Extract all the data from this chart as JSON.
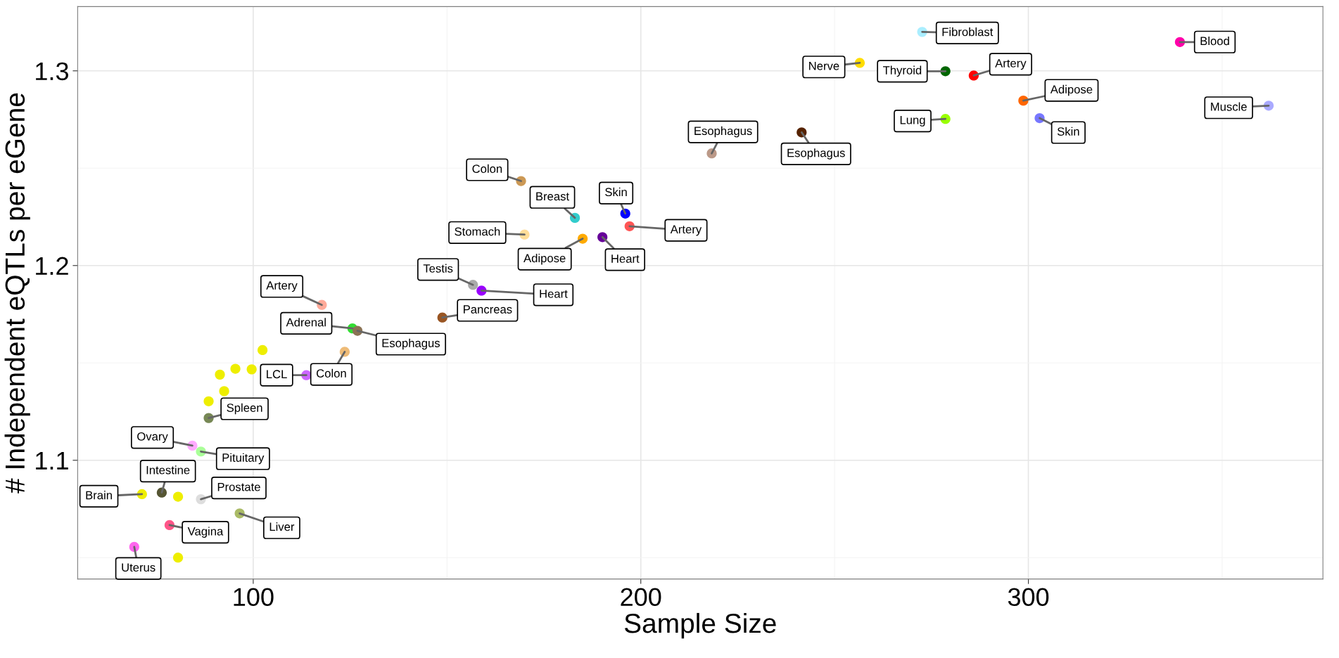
{
  "chart_data": {
    "type": "scatter",
    "xlabel": "Sample Size",
    "ylabel": "# Independent eQTLs per eGene",
    "xlim": [
      54.7,
      376
    ],
    "ylim": [
      1.039,
      1.333
    ],
    "xticks": [
      100,
      200,
      300
    ],
    "yticks": [
      1.1,
      1.2,
      1.3
    ],
    "grid": true,
    "legend": false,
    "marker": "circle",
    "series": [
      {
        "x": [
          69.3,
          80.6,
          78.4,
          96.5,
          71.3,
          76.4,
          80.6,
          86.5,
          84.3,
          86.5,
          88.5,
          88.5,
          92.5,
          91.4,
          95.4,
          99.6,
          102.4,
          113.7,
          123.6,
          125.6,
          126.9,
          117.7,
          148.8,
          156.7,
          158.9,
          170.0,
          185.0,
          169.1,
          183.0,
          190.1,
          196.0,
          197.1,
          218.3,
          241.5,
          256.5,
          272.6,
          278.6,
          285.9,
          278.6,
          298.7,
          302.9,
          339.1,
          362.0
        ],
        "values": [
          1.0555,
          1.05,
          1.0667,
          1.0727,
          1.0826,
          1.0834,
          1.0813,
          1.08,
          1.1075,
          1.1045,
          1.1217,
          1.1303,
          1.1355,
          1.144,
          1.147,
          1.1467,
          1.1566,
          1.1437,
          1.1557,
          1.1677,
          1.1665,
          1.1798,
          1.1733,
          1.1901,
          1.1871,
          1.2159,
          1.2138,
          1.2434,
          1.2245,
          1.2146,
          1.2267,
          1.2202,
          1.2576,
          1.2684,
          1.3041,
          1.32,
          1.2998,
          1.2976,
          1.2753,
          1.2847,
          1.2757,
          1.3148,
          1.2821
        ],
        "colors": [
          "#ff66ee",
          "#eeee00",
          "#ff5588",
          "#aabb66",
          "#eeee00",
          "#555533",
          "#eeee00",
          "#dddddd",
          "#ffaaff",
          "#aaff99",
          "#778855",
          "#eeee00",
          "#eeee00",
          "#eeee00",
          "#eeee00",
          "#eeee00",
          "#eeee00",
          "#cc66ff",
          "#eebb77",
          "#33dd33",
          "#8b7355",
          "#ffaa99",
          "#995522",
          "#aaaaaa",
          "#9900ff",
          "#ffdd99",
          "#ffaa00",
          "#cc9955",
          "#33cccc",
          "#660099",
          "#0000ff",
          "#ff5555",
          "#bb9988",
          "#552200",
          "#ffdd00",
          "#aaeeff",
          "#006600",
          "#ff0000",
          "#99ff00",
          "#ff6600",
          "#7777ff",
          "#ff00aa",
          "#aaaaff"
        ]
      }
    ],
    "annotations": [
      {
        "text": "Uterus",
        "x": 69.3,
        "y": 1.0555
      },
      {
        "text": "Vagina",
        "x": 78.4,
        "y": 1.0667
      },
      {
        "text": "Liver",
        "x": 96.5,
        "y": 1.0727
      },
      {
        "text": "Brain",
        "x": 71.3,
        "y": 1.0826
      },
      {
        "text": "Intestine",
        "x": 76.4,
        "y": 1.0834
      },
      {
        "text": "Prostate",
        "x": 86.5,
        "y": 1.08
      },
      {
        "text": "Ovary",
        "x": 84.3,
        "y": 1.1075
      },
      {
        "text": "Pituitary",
        "x": 86.5,
        "y": 1.1045
      },
      {
        "text": "Spleen",
        "x": 88.5,
        "y": 1.1217
      },
      {
        "text": "LCL",
        "x": 113.7,
        "y": 1.1437
      },
      {
        "text": "Colon",
        "x": 123.6,
        "y": 1.1557
      },
      {
        "text": "Adrenal",
        "x": 125.6,
        "y": 1.1677
      },
      {
        "text": "Esophagus",
        "x": 126.9,
        "y": 1.1665
      },
      {
        "text": "Artery",
        "x": 117.7,
        "y": 1.1798
      },
      {
        "text": "Pancreas",
        "x": 148.8,
        "y": 1.1733
      },
      {
        "text": "Testis",
        "x": 156.7,
        "y": 1.1901
      },
      {
        "text": "Heart",
        "x": 158.9,
        "y": 1.1871
      },
      {
        "text": "Stomach",
        "x": 170.0,
        "y": 1.2159
      },
      {
        "text": "Adipose",
        "x": 185.0,
        "y": 1.2138
      },
      {
        "text": "Colon",
        "x": 169.1,
        "y": 1.2434
      },
      {
        "text": "Breast",
        "x": 183.0,
        "y": 1.2245
      },
      {
        "text": "Heart",
        "x": 190.1,
        "y": 1.2146
      },
      {
        "text": "Skin",
        "x": 196.0,
        "y": 1.2267
      },
      {
        "text": "Artery",
        "x": 197.1,
        "y": 1.2202
      },
      {
        "text": "Esophagus",
        "x": 218.3,
        "y": 1.2576
      },
      {
        "text": "Esophagus",
        "x": 241.5,
        "y": 1.2684
      },
      {
        "text": "Nerve",
        "x": 256.5,
        "y": 1.3041
      },
      {
        "text": "Fibroblast",
        "x": 272.6,
        "y": 1.32
      },
      {
        "text": "Thyroid",
        "x": 278.6,
        "y": 1.2998
      },
      {
        "text": "Artery",
        "x": 285.9,
        "y": 1.2976
      },
      {
        "text": "Lung",
        "x": 278.6,
        "y": 1.2753
      },
      {
        "text": "Adipose",
        "x": 298.7,
        "y": 1.2847
      },
      {
        "text": "Skin",
        "x": 302.9,
        "y": 1.2757
      },
      {
        "text": "Blood",
        "x": 339.1,
        "y": 1.3148
      },
      {
        "text": "Muscle",
        "x": 362.0,
        "y": 1.2821
      }
    ]
  }
}
